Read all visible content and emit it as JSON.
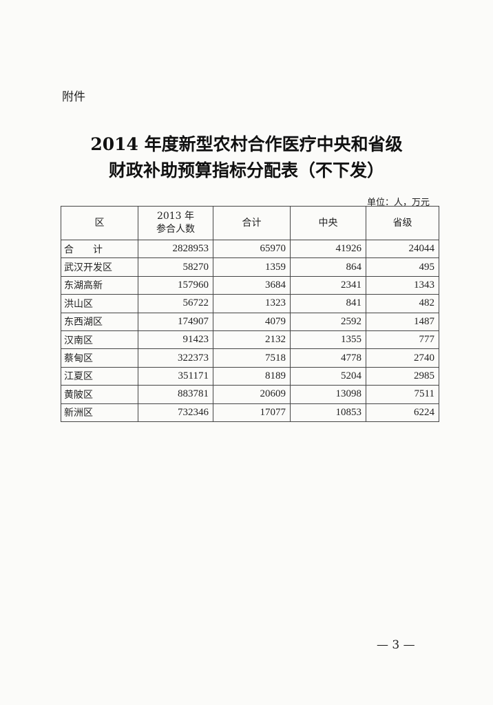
{
  "attachment_label": "附件",
  "title_line1": "2014 年度新型农村合作医疗中央和省级",
  "title_line2": "财政补助预算指标分配表（不下发）",
  "unit": "单位：人，万元",
  "table": {
    "headers": [
      "区",
      "2013 年\n参合人数",
      "合计",
      "中央",
      "省级"
    ],
    "header_1_line1": "2013 年",
    "header_1_line2": "参合人数",
    "rows": [
      [
        "合　　计",
        "2828953",
        "65970",
        "41926",
        "24044"
      ],
      [
        "武汉开发区",
        "58270",
        "1359",
        "864",
        "495"
      ],
      [
        "东湖高新",
        "157960",
        "3684",
        "2341",
        "1343"
      ],
      [
        "洪山区",
        "56722",
        "1323",
        "841",
        "482"
      ],
      [
        "东西湖区",
        "174907",
        "4079",
        "2592",
        "1487"
      ],
      [
        "汉南区",
        "91423",
        "2132",
        "1355",
        "777"
      ],
      [
        "蔡甸区",
        "322373",
        "7518",
        "4778",
        "2740"
      ],
      [
        "江夏区",
        "351171",
        "8189",
        "5204",
        "2985"
      ],
      [
        "黄陂区",
        "883781",
        "20609",
        "13098",
        "7511"
      ],
      [
        "新洲区",
        "732346",
        "17077",
        "10853",
        "6224"
      ]
    ]
  },
  "page_number": "— 3 —"
}
